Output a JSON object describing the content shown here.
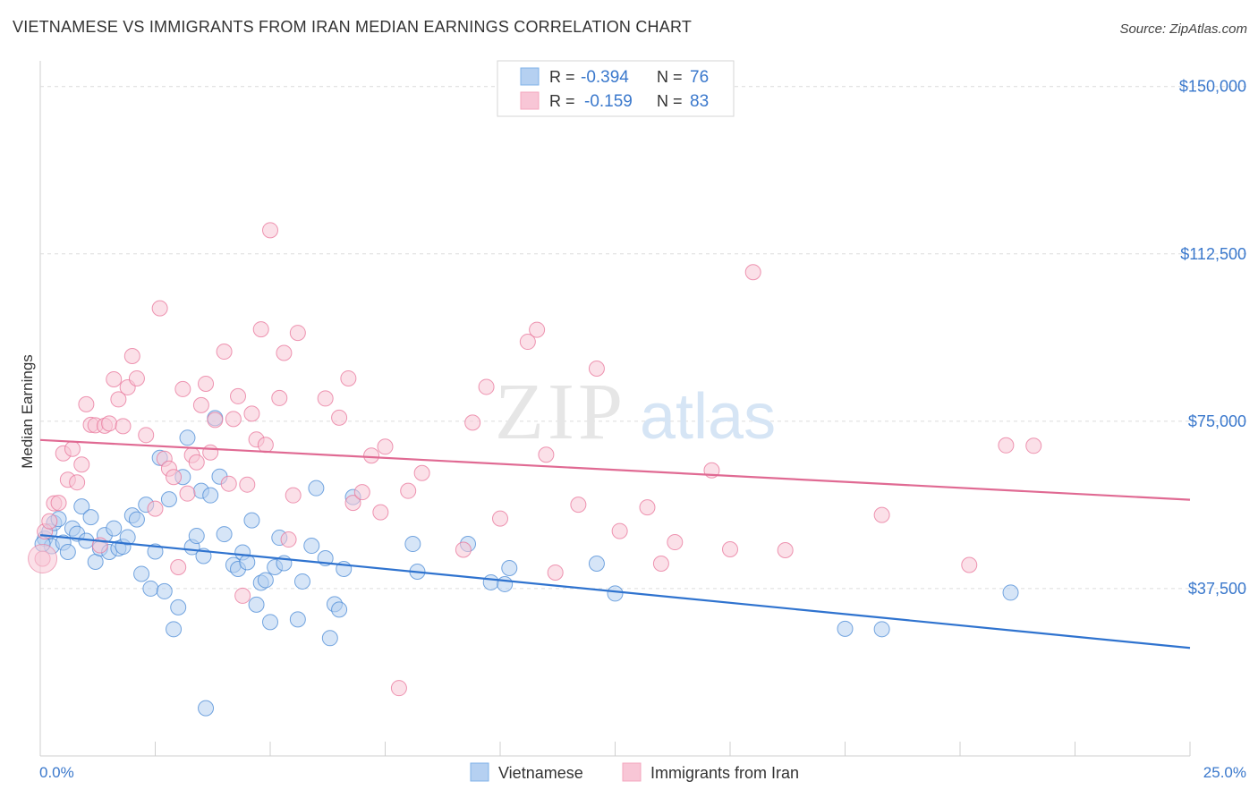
{
  "title": "VIETNAMESE VS IMMIGRANTS FROM IRAN MEDIAN EARNINGS CORRELATION CHART",
  "source": "Source: ZipAtlas.com",
  "watermark": {
    "zip": "ZIP",
    "atlas": "atlas"
  },
  "legend_top": [
    {
      "r_label": "R =",
      "r_value": "-0.394",
      "n_label": "N =",
      "n_value": "76",
      "color": "#7fb2e8"
    },
    {
      "r_label": "R =",
      "r_value": "-0.159",
      "n_label": "N =",
      "n_value": "83",
      "color": "#f4a7bf"
    }
  ],
  "legend_bottom": [
    {
      "label": "Vietnamese",
      "color": "#7fb2e8"
    },
    {
      "label": "Immigrants from Iran",
      "color": "#f4a7bf"
    }
  ],
  "chart_data": {
    "type": "scatter",
    "ylabel": "Median Earnings",
    "xlim": [
      0,
      25
    ],
    "ylim": [
      0,
      153750
    ],
    "x_tick_labels": {
      "left": "0.0%",
      "right": "25.0%"
    },
    "y_ticks": [
      {
        "value": 37500,
        "label": "$37,500"
      },
      {
        "value": 75000,
        "label": "$75,000"
      },
      {
        "value": 112500,
        "label": "$112,500"
      },
      {
        "value": 150000,
        "label": "$150,000"
      }
    ],
    "grid": true,
    "series": [
      {
        "name": "Vietnamese",
        "color": "#4a8ad6",
        "fill": "#b5d0f1",
        "trend": {
          "x": [
            0,
            25
          ],
          "y": [
            49500,
            24200
          ]
        },
        "points": [
          [
            0.1,
            48700
          ],
          [
            0.2,
            50300
          ],
          [
            0.25,
            47000
          ],
          [
            0.3,
            52200
          ],
          [
            0.4,
            53100
          ],
          [
            0.5,
            47800
          ],
          [
            0.6,
            45700
          ],
          [
            0.7,
            51000
          ],
          [
            0.8,
            49800
          ],
          [
            0.9,
            55900
          ],
          [
            1.0,
            48200
          ],
          [
            1.1,
            53500
          ],
          [
            1.2,
            43500
          ],
          [
            1.3,
            46500
          ],
          [
            1.4,
            49500
          ],
          [
            1.5,
            45700
          ],
          [
            1.6,
            51000
          ],
          [
            1.7,
            46500
          ],
          [
            1.8,
            46900
          ],
          [
            1.9,
            49000
          ],
          [
            2.0,
            53900
          ],
          [
            2.1,
            53000
          ],
          [
            2.2,
            40800
          ],
          [
            2.3,
            56300
          ],
          [
            2.4,
            37500
          ],
          [
            2.5,
            45800
          ],
          [
            2.6,
            66800
          ],
          [
            2.7,
            36900
          ],
          [
            2.8,
            57500
          ],
          [
            2.9,
            28400
          ],
          [
            3.0,
            33300
          ],
          [
            3.1,
            62500
          ],
          [
            3.2,
            71300
          ],
          [
            3.3,
            46800
          ],
          [
            3.4,
            49300
          ],
          [
            3.5,
            59400
          ],
          [
            3.55,
            44800
          ],
          [
            3.6,
            10700
          ],
          [
            3.7,
            58400
          ],
          [
            3.8,
            75700
          ],
          [
            3.9,
            62600
          ],
          [
            4.0,
            49700
          ],
          [
            4.2,
            42800
          ],
          [
            4.3,
            41900
          ],
          [
            4.4,
            45600
          ],
          [
            4.5,
            43400
          ],
          [
            4.6,
            52800
          ],
          [
            4.7,
            33900
          ],
          [
            4.8,
            38800
          ],
          [
            4.9,
            39400
          ],
          [
            5.0,
            30000
          ],
          [
            5.1,
            42300
          ],
          [
            5.2,
            48900
          ],
          [
            5.3,
            43200
          ],
          [
            5.6,
            30600
          ],
          [
            5.7,
            39100
          ],
          [
            5.9,
            47100
          ],
          [
            6.0,
            60000
          ],
          [
            6.2,
            44300
          ],
          [
            6.3,
            26400
          ],
          [
            6.4,
            34000
          ],
          [
            6.5,
            32800
          ],
          [
            6.6,
            41900
          ],
          [
            6.8,
            58000
          ],
          [
            8.1,
            47500
          ],
          [
            8.2,
            41300
          ],
          [
            9.3,
            47500
          ],
          [
            9.8,
            38900
          ],
          [
            10.1,
            38500
          ],
          [
            10.2,
            42100
          ],
          [
            12.1,
            43100
          ],
          [
            12.5,
            36400
          ],
          [
            17.5,
            28500
          ],
          [
            18.3,
            28400
          ],
          [
            21.1,
            36600
          ],
          [
            0.05,
            47500
          ]
        ]
      },
      {
        "name": "Immigrants from Iran",
        "color": "#e87499",
        "fill": "#f8c6d6",
        "trend": {
          "x": [
            0,
            25
          ],
          "y": [
            70800,
            57400
          ]
        },
        "points": [
          [
            0.05,
            44200
          ],
          [
            0.1,
            50300
          ],
          [
            0.2,
            52600
          ],
          [
            0.3,
            56600
          ],
          [
            0.4,
            56700
          ],
          [
            0.5,
            67800
          ],
          [
            0.6,
            61900
          ],
          [
            0.7,
            68800
          ],
          [
            0.8,
            61300
          ],
          [
            0.9,
            65300
          ],
          [
            1.0,
            78800
          ],
          [
            1.1,
            74200
          ],
          [
            1.2,
            74100
          ],
          [
            1.3,
            47200
          ],
          [
            1.4,
            74000
          ],
          [
            1.5,
            74500
          ],
          [
            1.6,
            84400
          ],
          [
            1.7,
            79900
          ],
          [
            1.8,
            73900
          ],
          [
            1.9,
            82600
          ],
          [
            2.0,
            89600
          ],
          [
            2.1,
            84600
          ],
          [
            2.3,
            71900
          ],
          [
            2.5,
            55400
          ],
          [
            2.6,
            100300
          ],
          [
            2.7,
            66600
          ],
          [
            2.8,
            64400
          ],
          [
            2.9,
            62500
          ],
          [
            3.0,
            42300
          ],
          [
            3.1,
            82200
          ],
          [
            3.2,
            58800
          ],
          [
            3.3,
            67400
          ],
          [
            3.4,
            65800
          ],
          [
            3.5,
            78600
          ],
          [
            3.6,
            83400
          ],
          [
            3.7,
            68000
          ],
          [
            3.8,
            75300
          ],
          [
            4.0,
            90600
          ],
          [
            4.1,
            61000
          ],
          [
            4.2,
            75500
          ],
          [
            4.3,
            80600
          ],
          [
            4.4,
            35900
          ],
          [
            4.5,
            60800
          ],
          [
            4.6,
            76700
          ],
          [
            4.7,
            70900
          ],
          [
            4.8,
            95600
          ],
          [
            4.9,
            69700
          ],
          [
            5.0,
            117800
          ],
          [
            5.2,
            80200
          ],
          [
            5.3,
            90300
          ],
          [
            5.4,
            48500
          ],
          [
            5.5,
            58400
          ],
          [
            5.6,
            94800
          ],
          [
            6.2,
            80100
          ],
          [
            6.5,
            75800
          ],
          [
            6.7,
            84600
          ],
          [
            6.8,
            56700
          ],
          [
            7.0,
            59100
          ],
          [
            7.2,
            67300
          ],
          [
            7.4,
            54600
          ],
          [
            7.5,
            69300
          ],
          [
            7.8,
            15200
          ],
          [
            8.0,
            59400
          ],
          [
            8.3,
            63400
          ],
          [
            9.2,
            46200
          ],
          [
            9.4,
            74700
          ],
          [
            9.7,
            82700
          ],
          [
            10.0,
            53200
          ],
          [
            10.6,
            92800
          ],
          [
            10.8,
            95500
          ],
          [
            11.0,
            67500
          ],
          [
            11.2,
            41100
          ],
          [
            11.7,
            56300
          ],
          [
            12.1,
            86800
          ],
          [
            12.6,
            50400
          ],
          [
            13.2,
            55700
          ],
          [
            13.5,
            43100
          ],
          [
            13.8,
            47900
          ],
          [
            14.6,
            64000
          ],
          [
            15.0,
            46300
          ],
          [
            15.5,
            108400
          ],
          [
            16.2,
            46100
          ],
          [
            18.3,
            54000
          ]
        ],
        "extra_points": [
          [
            20.2,
            42800
          ],
          [
            21.0,
            69600
          ],
          [
            21.6,
            69500
          ]
        ]
      }
    ]
  }
}
